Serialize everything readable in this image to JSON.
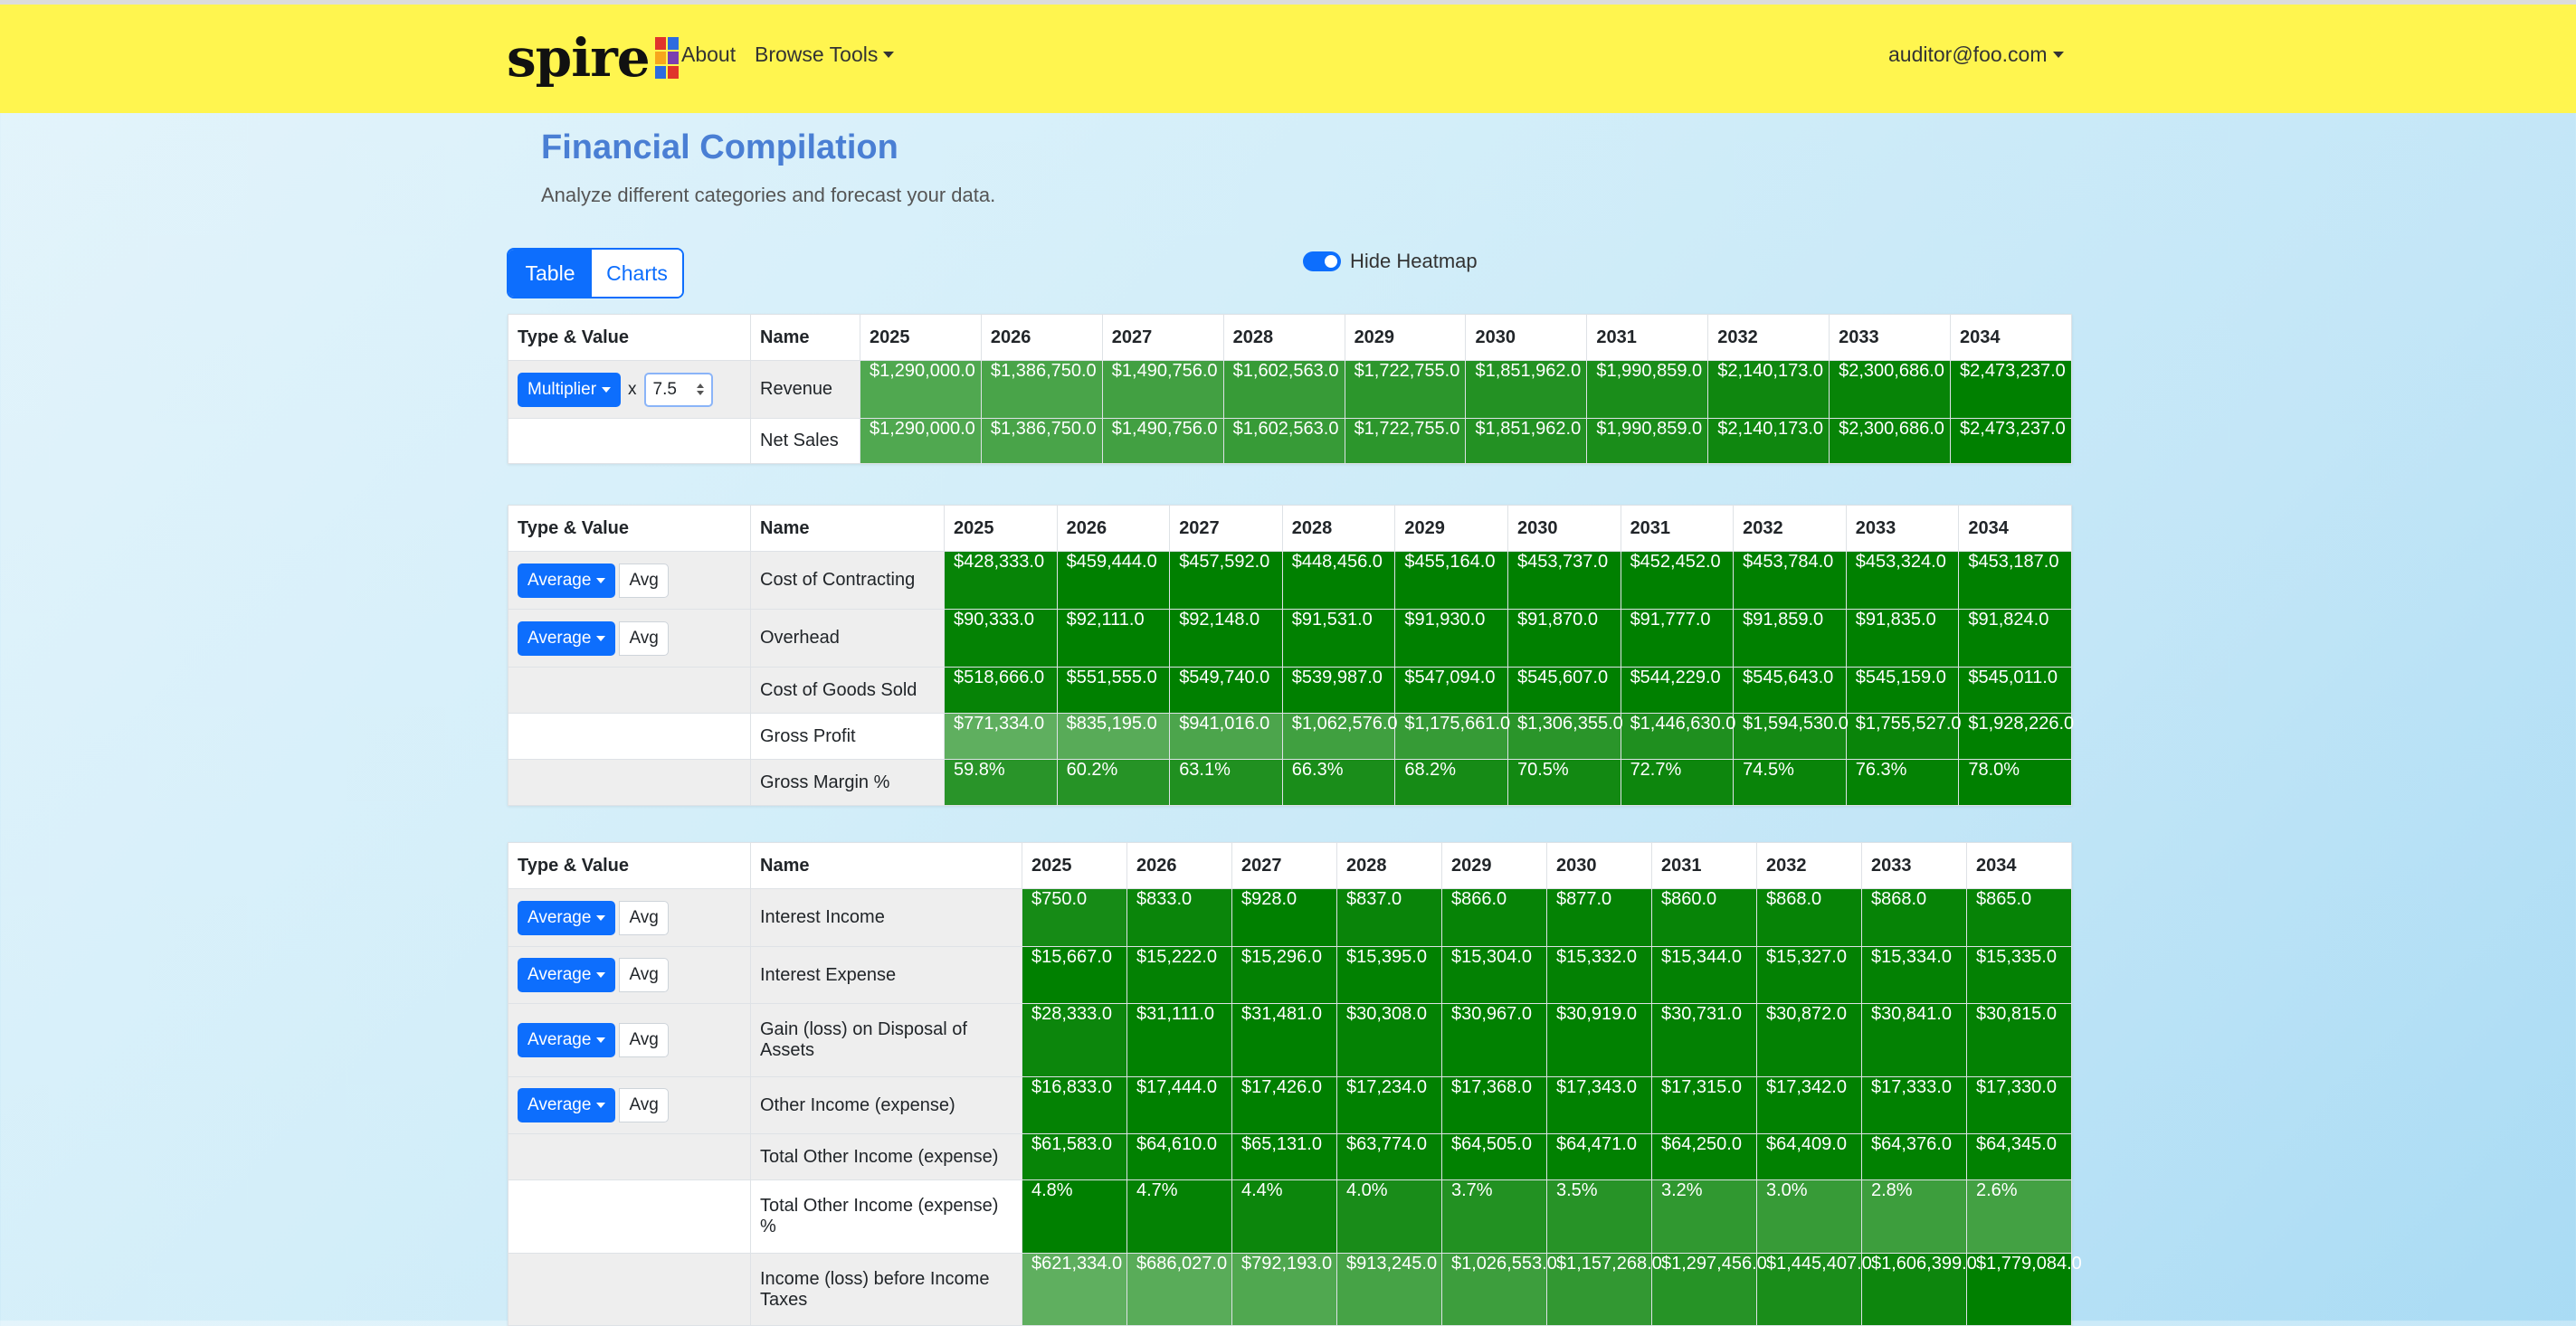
{
  "nav": {
    "logo_text": "spire",
    "about": "About",
    "browse_tools": "Browse Tools",
    "user": "auditor@foo.com"
  },
  "page": {
    "title": "Financial Compilation",
    "subtitle": "Analyze different categories and forecast your data.",
    "view_table": "Table",
    "view_charts": "Charts",
    "heatmap_toggle": "Hide Heatmap"
  },
  "colors": {
    "navbar": "#fff54f",
    "primary": "#0d6efd",
    "title": "#4a7fd4"
  },
  "tables": [
    {
      "headers": [
        "Type & Value",
        "Name",
        "2025",
        "2026",
        "2027",
        "2028",
        "2029",
        "2030",
        "2031",
        "2032",
        "2033",
        "2034"
      ],
      "rows": [
        {
          "control": "multiplier",
          "type_label": "Multiplier",
          "x_label": "x",
          "input_value": "7.5",
          "name": "Revenue",
          "values": [
            "$1,290,000.0",
            "$1,386,750.0",
            "$1,490,756.0",
            "$1,602,563.0",
            "$1,722,755.0",
            "$1,851,962.0",
            "$1,990,859.0",
            "$2,140,173.0",
            "$2,300,686.0",
            "$2,473,237.0"
          ],
          "heat": [
            0.45,
            0.5,
            0.55,
            0.62,
            0.7,
            0.76,
            0.82,
            0.9,
            0.95,
            1.0
          ]
        },
        {
          "control": "none",
          "name": "Net Sales",
          "values": [
            "$1,290,000.0",
            "$1,386,750.0",
            "$1,490,756.0",
            "$1,602,563.0",
            "$1,722,755.0",
            "$1,851,962.0",
            "$1,990,859.0",
            "$2,140,173.0",
            "$2,300,686.0",
            "$2,473,237.0"
          ],
          "heat": [
            0.45,
            0.5,
            0.55,
            0.62,
            0.7,
            0.76,
            0.82,
            0.9,
            0.95,
            1.0
          ]
        }
      ]
    },
    {
      "headers": [
        "Type & Value",
        "Name",
        "2025",
        "2026",
        "2027",
        "2028",
        "2029",
        "2030",
        "2031",
        "2032",
        "2033",
        "2034"
      ],
      "rows": [
        {
          "control": "average",
          "type_label": "Average",
          "avg_label": "Avg",
          "name": "Cost of Contracting",
          "values": [
            "$428,333.0",
            "$459,444.0",
            "$457,592.0",
            "$448,456.0",
            "$455,164.0",
            "$453,737.0",
            "$452,452.0",
            "$453,784.0",
            "$453,324.0",
            "$453,187.0"
          ],
          "heat": [
            0.95,
            1,
            1,
            1,
            1,
            1,
            1,
            1,
            1,
            1
          ]
        },
        {
          "control": "average",
          "type_label": "Average",
          "avg_label": "Avg",
          "name": "Overhead",
          "values": [
            "$90,333.0",
            "$92,111.0",
            "$92,148.0",
            "$91,531.0",
            "$91,930.0",
            "$91,870.0",
            "$91,777.0",
            "$91,859.0",
            "$91,835.0",
            "$91,824.0"
          ],
          "heat": [
            0.97,
            1,
            1,
            0.99,
            1,
            1,
            1,
            1,
            1,
            1
          ]
        },
        {
          "control": "none",
          "shade": true,
          "name": "Cost of Goods Sold",
          "values": [
            "$518,666.0",
            "$551,555.0",
            "$549,740.0",
            "$539,987.0",
            "$547,094.0",
            "$545,607.0",
            "$544,229.0",
            "$545,643.0",
            "$545,159.0",
            "$545,011.0"
          ],
          "heat": [
            0.96,
            1,
            1,
            1,
            1,
            1,
            1,
            1,
            1,
            1
          ]
        },
        {
          "control": "none",
          "name": "Gross Profit",
          "values": [
            "$771,334.0",
            "$835,195.0",
            "$941,016.0",
            "$1,062,576.0",
            "$1,175,661.0",
            "$1,306,355.0",
            "$1,446,630.0",
            "$1,594,530.0",
            "$1,755,527.0",
            "$1,928,226.0"
          ],
          "heat": [
            0.35,
            0.4,
            0.48,
            0.56,
            0.63,
            0.71,
            0.79,
            0.86,
            0.94,
            1.0
          ]
        },
        {
          "control": "none",
          "shade": true,
          "name": "Gross Margin %",
          "values": [
            "59.8%",
            "60.2%",
            "63.1%",
            "66.3%",
            "68.2%",
            "70.5%",
            "72.7%",
            "74.5%",
            "76.3%",
            "78.0%"
          ],
          "heat": [
            0.72,
            0.74,
            0.78,
            0.82,
            0.85,
            0.88,
            0.91,
            0.94,
            0.97,
            1.0
          ]
        }
      ]
    },
    {
      "headers": [
        "Type & Value",
        "Name",
        "2025",
        "2026",
        "2027",
        "2028",
        "2029",
        "2030",
        "2031",
        "2032",
        "2033",
        "2034"
      ],
      "rows": [
        {
          "control": "average",
          "type_label": "Average",
          "avg_label": "Avg",
          "name": "Interest Income",
          "values": [
            "$750.0",
            "$833.0",
            "$928.0",
            "$837.0",
            "$866.0",
            "$877.0",
            "$860.0",
            "$868.0",
            "$868.0",
            "$865.0"
          ],
          "heat": [
            0.85,
            0.93,
            1,
            0.94,
            0.96,
            0.97,
            0.95,
            0.96,
            0.96,
            0.96
          ]
        },
        {
          "control": "average",
          "type_label": "Average",
          "avg_label": "Avg",
          "name": "Interest Expense",
          "values": [
            "$15,667.0",
            "$15,222.0",
            "$15,296.0",
            "$15,395.0",
            "$15,304.0",
            "$15,332.0",
            "$15,344.0",
            "$15,327.0",
            "$15,334.0",
            "$15,335.0"
          ],
          "heat": [
            1,
            0.98,
            0.98,
            0.99,
            0.98,
            0.98,
            0.98,
            0.98,
            0.98,
            0.98
          ]
        },
        {
          "control": "average",
          "type_label": "Average",
          "avg_label": "Avg",
          "name": "Gain (loss) on Disposal of Assets",
          "values": [
            "$28,333.0",
            "$31,111.0",
            "$31,481.0",
            "$30,308.0",
            "$30,967.0",
            "$30,919.0",
            "$30,731.0",
            "$30,872.0",
            "$30,841.0",
            "$30,815.0"
          ],
          "heat": [
            0.92,
            0.99,
            1,
            0.97,
            0.99,
            0.99,
            0.98,
            0.98,
            0.98,
            0.98
          ]
        },
        {
          "control": "average",
          "type_label": "Average",
          "avg_label": "Avg",
          "name": "Other Income (expense)",
          "values": [
            "$16,833.0",
            "$17,444.0",
            "$17,426.0",
            "$17,234.0",
            "$17,368.0",
            "$17,343.0",
            "$17,315.0",
            "$17,342.0",
            "$17,333.0",
            "$17,330.0"
          ],
          "heat": [
            0.97,
            1,
            1,
            0.99,
            1,
            0.99,
            0.99,
            0.99,
            0.99,
            0.99
          ]
        },
        {
          "control": "none",
          "shade": true,
          "name": "Total Other Income (expense)",
          "values": [
            "$61,583.0",
            "$64,610.0",
            "$65,131.0",
            "$63,774.0",
            "$64,505.0",
            "$64,471.0",
            "$64,250.0",
            "$64,409.0",
            "$64,376.0",
            "$64,345.0"
          ],
          "heat": [
            0.95,
            0.99,
            1,
            0.98,
            0.99,
            0.99,
            0.99,
            0.99,
            0.99,
            0.99
          ]
        },
        {
          "control": "none",
          "name": "Total Other Income (expense) %",
          "values": [
            "4.8%",
            "4.7%",
            "4.4%",
            "4.0%",
            "3.7%",
            "3.5%",
            "3.2%",
            "3.0%",
            "2.8%",
            "2.6%"
          ],
          "heat": [
            1,
            0.97,
            0.92,
            0.83,
            0.77,
            0.73,
            0.67,
            0.62,
            0.58,
            0.54
          ]
        },
        {
          "control": "none",
          "shade": true,
          "name": "Income (loss) before Income Taxes",
          "values": [
            "$621,334.0",
            "$686,027.0",
            "$792,193.0",
            "$913,245.0",
            "$1,026,553.0",
            "$1,157,268.0",
            "$1,297,456.0",
            "$1,445,407.0",
            "$1,606,399.0",
            "$1,779,084.0"
          ],
          "heat": [
            0.35,
            0.39,
            0.45,
            0.52,
            0.58,
            0.66,
            0.74,
            0.82,
            0.91,
            1.0
          ]
        }
      ]
    }
  ]
}
